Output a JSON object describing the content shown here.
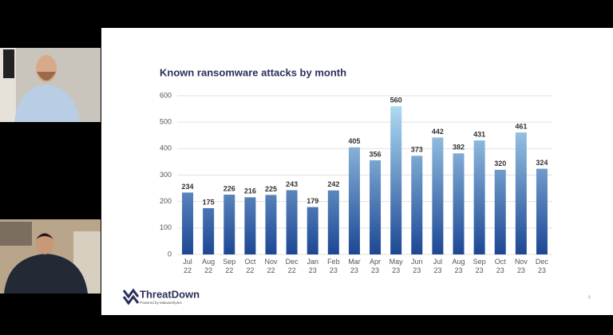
{
  "slide": {
    "logo": "ThreatDown",
    "logo_tagline": "Powered by Malwarebytes",
    "page_number": "8"
  },
  "chart_data": {
    "type": "bar",
    "title": "Known ransomware attacks by month",
    "categories": [
      "Jul 22",
      "Aug 22",
      "Sep 22",
      "Oct 22",
      "Nov 22",
      "Dec 22",
      "Jan 23",
      "Feb 23",
      "Mar 23",
      "Apr 23",
      "May 23",
      "Jun 23",
      "Jul 23",
      "Aug 23",
      "Sep 23",
      "Oct 23",
      "Nov 23",
      "Dec 23"
    ],
    "values": [
      234,
      175,
      226,
      216,
      225,
      243,
      179,
      242,
      405,
      356,
      560,
      373,
      442,
      382,
      431,
      320,
      461,
      324
    ],
    "gradient": [
      "#1d4794",
      "#b8e4f8"
    ],
    "ylim": [
      0,
      600
    ],
    "yticks": [
      0,
      100,
      200,
      300,
      400,
      500,
      600
    ],
    "grid": true
  }
}
